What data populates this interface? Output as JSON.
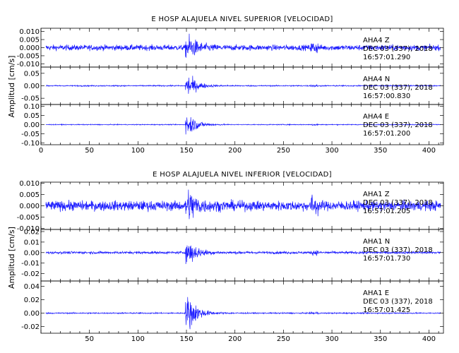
{
  "chart_data": [
    {
      "type": "line",
      "title": "E HOSP ALAJUELA NIVEL SUPERIOR [VELOCIDAD]",
      "ylabel": "Amplitud [cm/s]",
      "xlim": [
        0,
        415
      ],
      "x_ticks": [
        "0",
        "50",
        "100",
        "150",
        "200",
        "250",
        "300",
        "350",
        "400"
      ],
      "event_onset_x": 150,
      "panels": [
        {
          "station": "AHA4",
          "component": "Z",
          "date_label": "DEC 03 (337), 2018",
          "time_label": "16:57:01.290",
          "ylim": [
            -0.012,
            0.012
          ],
          "y_ticks": [
            "0.010",
            "0.005",
            "0.000",
            "-0.005",
            "-0.010"
          ],
          "noise_amplitude": 0.0022,
          "peak_amplitude": 0.0115
        },
        {
          "station": "AHA4",
          "component": "N",
          "date_label": "DEC 03 (337), 2018",
          "time_label": "16:57:00.830",
          "ylim": [
            -0.075,
            0.075
          ],
          "y_ticks": [
            "0.05",
            "0.00",
            "-0.05"
          ],
          "noise_amplitude": 0.003,
          "peak_amplitude": 0.07
        },
        {
          "station": "AHA4",
          "component": "E",
          "date_label": "DEC 03 (337), 2018",
          "time_label": "16:57:01.200",
          "ylim": [
            -0.11,
            0.11
          ],
          "y_ticks": [
            "0.10",
            "0.05",
            "0.00",
            "-0.05",
            "-0.10"
          ],
          "noise_amplitude": 0.003,
          "peak_amplitude": 0.1
        }
      ]
    },
    {
      "type": "line",
      "title": "E HOSP ALAJUELA NIVEL INFERIOR [VELOCIDAD]",
      "ylabel": "Amplitud [cm/s]",
      "xlim": [
        0,
        415
      ],
      "x_ticks": [
        "50",
        "100",
        "150",
        "200",
        "250",
        "300",
        "350",
        "400"
      ],
      "event_onset_x": 150,
      "panels": [
        {
          "station": "AHA1",
          "component": "Z",
          "date_label": "DEC 03 (337), 2018",
          "time_label": "16:57:01.205",
          "ylim": [
            -0.0105,
            0.0105
          ],
          "y_ticks": [
            "0.010",
            "0.005",
            "0.000",
            "-0.005",
            "-0.010"
          ],
          "noise_amplitude": 0.0028,
          "peak_amplitude": 0.0102
        },
        {
          "station": "AHA1",
          "component": "N",
          "date_label": "DEC 03 (337), 2018",
          "time_label": "16:57:01.730",
          "ylim": [
            -0.027,
            0.022
          ],
          "y_ticks": [
            "0.02",
            "0.01",
            "0.00",
            "-0.01",
            "-0.02"
          ],
          "noise_amplitude": 0.0015,
          "peak_amplitude": 0.02
        },
        {
          "station": "AHA1",
          "component": "E",
          "date_label": "DEC 03 (337), 2018",
          "time_label": "16:57:01.425",
          "ylim": [
            -0.03,
            0.048
          ],
          "y_ticks": [
            "0.04",
            "0.02",
            "0.00",
            "-0.02"
          ],
          "noise_amplitude": 0.0012,
          "peak_amplitude": 0.045
        }
      ]
    }
  ],
  "colors": {
    "trace": "#1a1aff",
    "axes": "#000000"
  }
}
